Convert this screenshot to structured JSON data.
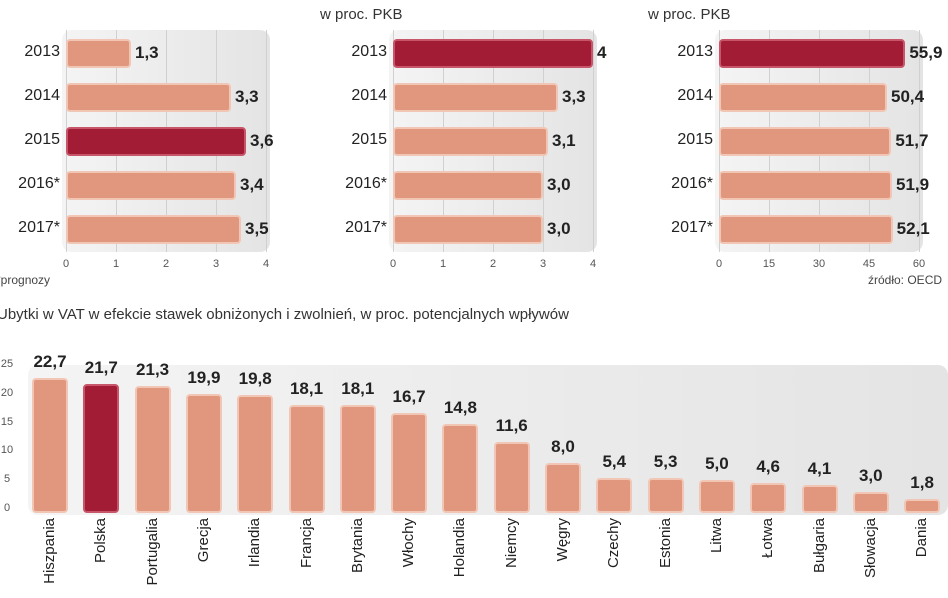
{
  "chart_data": [
    {
      "type": "bar",
      "orientation": "horizontal",
      "subtitle": "",
      "categories": [
        "2013",
        "2014",
        "2015",
        "2016*",
        "2017*"
      ],
      "values": [
        1.3,
        3.3,
        3.6,
        3.4,
        3.5
      ],
      "value_labels": [
        "1,3",
        "3,3",
        "3,6",
        "3,4",
        "3,5"
      ],
      "highlight": "2015",
      "xlim": [
        0,
        4
      ],
      "xticks": [
        "0",
        "1",
        "2",
        "3",
        "4"
      ],
      "note": "*prognozy"
    },
    {
      "type": "bar",
      "orientation": "horizontal",
      "subtitle": "w proc. PKB",
      "categories": [
        "2013",
        "2014",
        "2015",
        "2016*",
        "2017*"
      ],
      "values": [
        4,
        3.3,
        3.1,
        3.0,
        3.0
      ],
      "value_labels": [
        "4",
        "3,3",
        "3,1",
        "3,0",
        "3,0"
      ],
      "highlight": "2013",
      "xlim": [
        0,
        4
      ],
      "xticks": [
        "0",
        "1",
        "2",
        "3",
        "4"
      ]
    },
    {
      "type": "bar",
      "orientation": "horizontal",
      "subtitle": "w proc. PKB",
      "categories": [
        "2013",
        "2014",
        "2015",
        "2016*",
        "2017*"
      ],
      "values": [
        55.9,
        50.4,
        51.7,
        51.9,
        52.1
      ],
      "value_labels": [
        "55,9",
        "50,4",
        "51,7",
        "51,9",
        "52,1"
      ],
      "highlight": "2013",
      "xlim": [
        0,
        60
      ],
      "xticks": [
        "0",
        "15",
        "30",
        "45",
        "60"
      ],
      "source": "źródło: OECD"
    },
    {
      "type": "bar",
      "orientation": "vertical",
      "title": "Ubytki w VAT w efekcie stawek obniżonych i zwolnień, w proc. potencjalnych wpływów",
      "categories": [
        "Hiszpania",
        "Polska",
        "Portugalia",
        "Grecja",
        "Irlandia",
        "Francja",
        "Brytania",
        "Włochy",
        "Holandia",
        "Niemcy",
        "Węgry",
        "Czechy",
        "Estonia",
        "Litwa",
        "Łotwa",
        "Bułgaria",
        "Słowacja",
        "Dania"
      ],
      "values": [
        22.7,
        21.7,
        21.3,
        19.9,
        19.8,
        18.1,
        18.1,
        16.7,
        14.8,
        11.6,
        8.0,
        5.4,
        5.3,
        5.0,
        4.6,
        4.1,
        3.0,
        1.8
      ],
      "value_labels": [
        "22,7",
        "21,7",
        "21,3",
        "19,9",
        "19,8",
        "18,1",
        "18,1",
        "16,7",
        "14,8",
        "11,6",
        "8,0",
        "5,4",
        "5,3",
        "5,0",
        "4,6",
        "4,1",
        "3,0",
        "1,8"
      ],
      "highlight": "Polska",
      "ylim": [
        0,
        25
      ],
      "yticks": [
        "0",
        "5",
        "10",
        "15",
        "20",
        "25"
      ]
    }
  ],
  "colors": {
    "bar": "#e0977e",
    "highlight": "#a31c35"
  }
}
